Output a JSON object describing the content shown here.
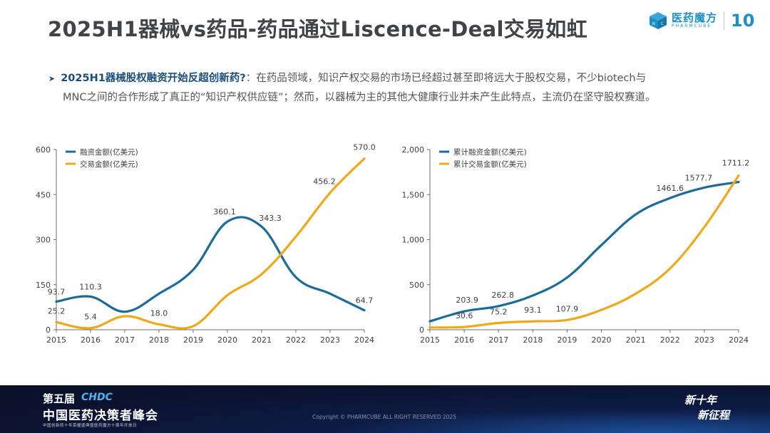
{
  "header": {
    "title": "2025H1器械vs药品-药品通过Liscence-Deal交易如虹",
    "logo_cn": "医药魔方",
    "logo_en": "PHARMCUBE",
    "logo_anniversary": "10"
  },
  "bullet": {
    "highlight": "2025H1器械股权融资开始反超创新药?",
    "separator": "：",
    "text_line1": "在药品领域，知识产权交易的市场已经超过甚至即将远大于股权交易，不少biotech与",
    "text_line2": "MNC之间的合作形成了真正的“知识产权供应链”；然而，以器械为主的其他大健康行业并未产生此特点，主流仍在坚守股权赛道。"
  },
  "colors": {
    "financing": "#1b6c9c",
    "deal": "#f0a81b",
    "title": "#404348",
    "accent": "#1a4e7a"
  },
  "chart_data": [
    {
      "type": "line",
      "title": "",
      "xlabel": "",
      "ylabel": "",
      "x": [
        "2015",
        "2016",
        "2017",
        "2018",
        "2019",
        "2020",
        "2021",
        "2022",
        "2023",
        "2024"
      ],
      "ylim": [
        0,
        600
      ],
      "yticks": [
        "0",
        "150",
        "300",
        "450",
        "600"
      ],
      "ytick_values": [
        0,
        150,
        300,
        450,
        600
      ],
      "legend_position": "top-left",
      "grid": false,
      "series": [
        {
          "name": "融资金额(亿美元)",
          "color": "#1b6c9c",
          "values": [
            93.7,
            110.3,
            60,
            120,
            200,
            360.1,
            343.3,
            175,
            120,
            64.7
          ],
          "labels": [
            "93.7",
            "110.3",
            "",
            "",
            "",
            "360.1",
            "343.3",
            "",
            "",
            "64.7"
          ]
        },
        {
          "name": "交易金额(亿美元)",
          "color": "#f0a81b",
          "values": [
            25.2,
            5.4,
            45,
            18.0,
            12,
            115,
            185,
            310,
            456.2,
            570.0
          ],
          "labels": [
            "25.2",
            "5.4",
            "",
            "18.0",
            "",
            "",
            "",
            "",
            "456.2",
            "570.0"
          ]
        }
      ]
    },
    {
      "type": "line",
      "title": "",
      "xlabel": "",
      "ylabel": "",
      "x": [
        "2015",
        "2016",
        "2017",
        "2018",
        "2019",
        "2020",
        "2021",
        "2022",
        "2023",
        "2024"
      ],
      "ylim": [
        0,
        2000
      ],
      "yticks": [
        "0",
        "500",
        "1,000",
        "1,500",
        "2,000"
      ],
      "ytick_values": [
        0,
        500,
        1000,
        1500,
        2000
      ],
      "legend_position": "top-left",
      "grid": false,
      "series": [
        {
          "name": "累计融资金额(亿美元)",
          "color": "#1b6c9c",
          "values": [
            93.7,
            203.9,
            262.8,
            380,
            580,
            940,
            1280,
            1461.6,
            1577.7,
            1640
          ],
          "labels": [
            "",
            "203.9",
            "262.8",
            "",
            "",
            "",
            "",
            "1461.6",
            "1577.7",
            ""
          ]
        },
        {
          "name": "累计交易金额(亿美元)",
          "color": "#f0a81b",
          "values": [
            25.2,
            30.6,
            75.2,
            93.1,
            107.9,
            220,
            400,
            680,
            1140,
            1711.2
          ],
          "labels": [
            "",
            "30.6",
            "75.2",
            "93.1",
            "107.9",
            "",
            "",
            "",
            "",
            "1711.2"
          ]
        }
      ]
    }
  ],
  "footer": {
    "edition": "第五届",
    "brand": "CHDC",
    "summit": "中国医药决策者峰会",
    "tagline": "中国创新药十年荣耀盛典暨医药魔方十周年开放日",
    "copyright": "Copyright © PHARMCUBE ALL RIGHT RESERVED 2025",
    "slogan_line1": "新十年",
    "slogan_line2": "新征程"
  }
}
